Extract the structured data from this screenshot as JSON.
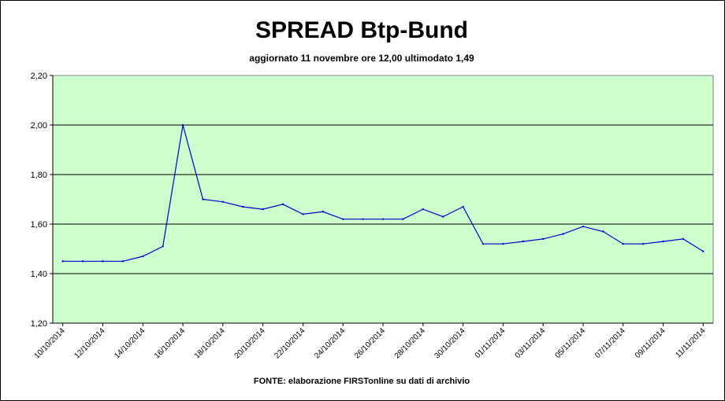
{
  "chart_data": {
    "type": "line",
    "title": "SPREAD Btp-Bund",
    "subtitle": "aggiornato 11 novembre ore 12,00  ultimodato  1,49",
    "source": "FONTE: elaborazione FIRSTonline su dati di archivio",
    "xlabel": "",
    "ylabel": "",
    "ylim": [
      1.2,
      2.2
    ],
    "y_ticks": [
      "1,20",
      "1,40",
      "1,60",
      "1,80",
      "2,00",
      "2,20"
    ],
    "x_ticks": [
      "10/10/2014",
      "12/10/2014",
      "14/10/2014",
      "16/10/2014",
      "18/10/2014",
      "20/10/2014",
      "22/10/2014",
      "24/10/2014",
      "26/10/2014",
      "28/10/2014",
      "30/10/2014",
      "01/11/2014",
      "03/11/2014",
      "05/11/2014",
      "07/11/2014",
      "09/11/2014",
      "11/11/2014"
    ],
    "grid": true,
    "plot_background": "#ccffcc",
    "line_color": "#0000cc",
    "points": [
      {
        "x": "2014-10-10",
        "y": 1.45
      },
      {
        "x": "2014-10-11",
        "y": 1.45
      },
      {
        "x": "2014-10-12",
        "y": 1.45
      },
      {
        "x": "2014-10-13",
        "y": 1.45
      },
      {
        "x": "2014-10-14",
        "y": 1.47
      },
      {
        "x": "2014-10-15",
        "y": 1.51
      },
      {
        "x": "2014-10-16",
        "y": 2.0
      },
      {
        "x": "2014-10-17",
        "y": 1.7
      },
      {
        "x": "2014-10-18",
        "y": 1.69
      },
      {
        "x": "2014-10-19",
        "y": 1.67
      },
      {
        "x": "2014-10-20",
        "y": 1.66
      },
      {
        "x": "2014-10-21",
        "y": 1.68
      },
      {
        "x": "2014-10-22",
        "y": 1.64
      },
      {
        "x": "2014-10-23",
        "y": 1.65
      },
      {
        "x": "2014-10-24",
        "y": 1.62
      },
      {
        "x": "2014-10-25",
        "y": 1.62
      },
      {
        "x": "2014-10-26",
        "y": 1.62
      },
      {
        "x": "2014-10-27",
        "y": 1.62
      },
      {
        "x": "2014-10-28",
        "y": 1.66
      },
      {
        "x": "2014-10-29",
        "y": 1.63
      },
      {
        "x": "2014-10-30",
        "y": 1.67
      },
      {
        "x": "2014-10-31",
        "y": 1.52
      },
      {
        "x": "2014-11-01",
        "y": 1.52
      },
      {
        "x": "2014-11-02",
        "y": 1.53
      },
      {
        "x": "2014-11-03",
        "y": 1.54
      },
      {
        "x": "2014-11-04",
        "y": 1.56
      },
      {
        "x": "2014-11-05",
        "y": 1.59
      },
      {
        "x": "2014-11-06",
        "y": 1.57
      },
      {
        "x": "2014-11-07",
        "y": 1.52
      },
      {
        "x": "2014-11-08",
        "y": 1.52
      },
      {
        "x": "2014-11-09",
        "y": 1.53
      },
      {
        "x": "2014-11-10",
        "y": 1.54
      },
      {
        "x": "2014-11-11",
        "y": 1.49
      }
    ]
  }
}
